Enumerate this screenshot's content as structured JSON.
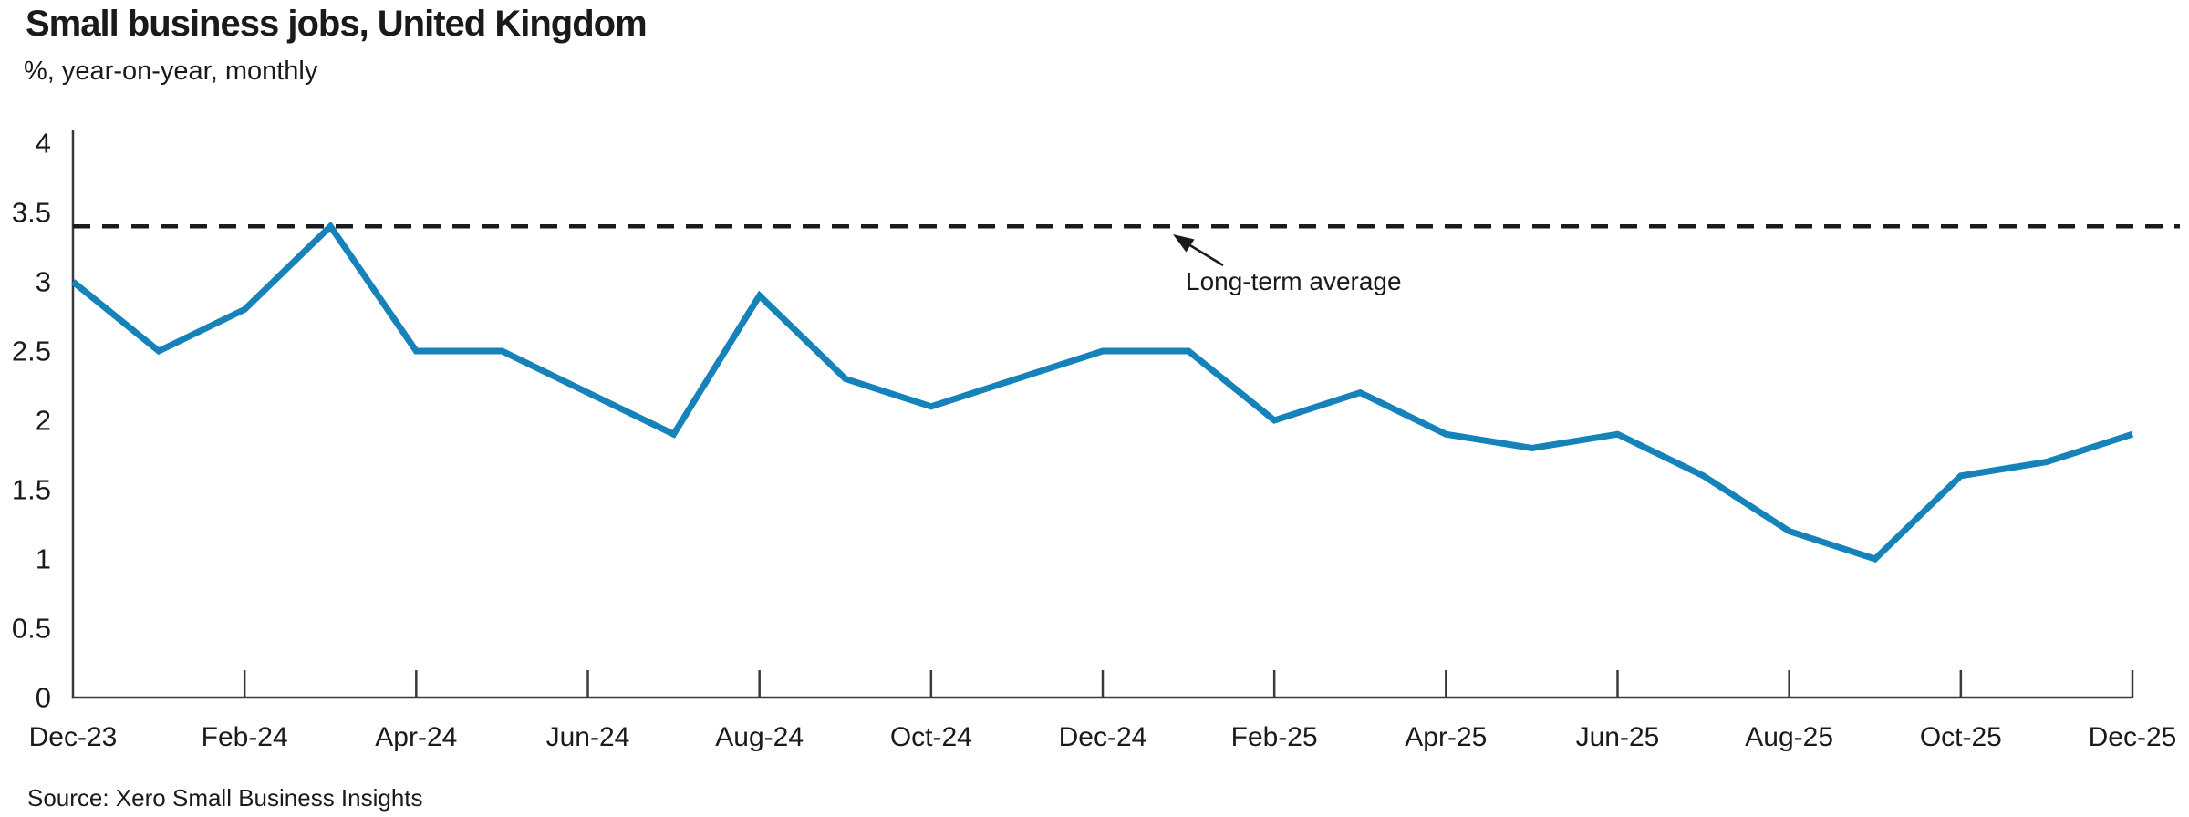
{
  "header": {
    "title": "Small business jobs, United Kingdom",
    "subtitle": "%, year-on-year, monthly"
  },
  "footer": {
    "source": "Source: Xero Small Business Insights"
  },
  "colors": {
    "line": "#1682ba",
    "axis": "#3a3a3a",
    "text": "#1a1a1a",
    "reference_line": "#1a1a1a"
  },
  "chart_data": {
    "type": "line",
    "title": "Small business jobs, United Kingdom",
    "subtitle": "%, year-on-year, monthly",
    "source": "Source: Xero Small Business Insights",
    "x": [
      "Dec-23",
      "Jan-24",
      "Feb-24",
      "Mar-24",
      "Apr-24",
      "May-24",
      "Jun-24",
      "Jul-24",
      "Aug-24",
      "Sep-24",
      "Oct-24",
      "Nov-24",
      "Dec-24",
      "Jan-25",
      "Feb-25",
      "Mar-25",
      "Apr-25",
      "May-25",
      "Jun-25",
      "Jul-25",
      "Aug-25",
      "Sep-25",
      "Oct-25",
      "Nov-25",
      "Dec-25"
    ],
    "series": [
      {
        "name": "Small business jobs, year-on-year %",
        "values": [
          3.0,
          2.5,
          2.8,
          3.4,
          2.5,
          2.5,
          2.2,
          1.9,
          2.9,
          2.3,
          2.1,
          2.3,
          2.5,
          2.5,
          2.0,
          2.2,
          1.9,
          1.8,
          1.9,
          1.6,
          1.2,
          1.0,
          1.6,
          1.7,
          1.9
        ]
      }
    ],
    "reference_line": {
      "label": "Long-term average",
      "value": 3.4,
      "style": "dashed"
    },
    "xlabel": "",
    "ylabel": "",
    "ylim": [
      0,
      4
    ],
    "yticks": [
      0,
      0.5,
      1,
      1.5,
      2,
      2.5,
      3,
      3.5,
      4
    ],
    "x_tick_every": 2,
    "grid": false,
    "legend_position": "none"
  }
}
